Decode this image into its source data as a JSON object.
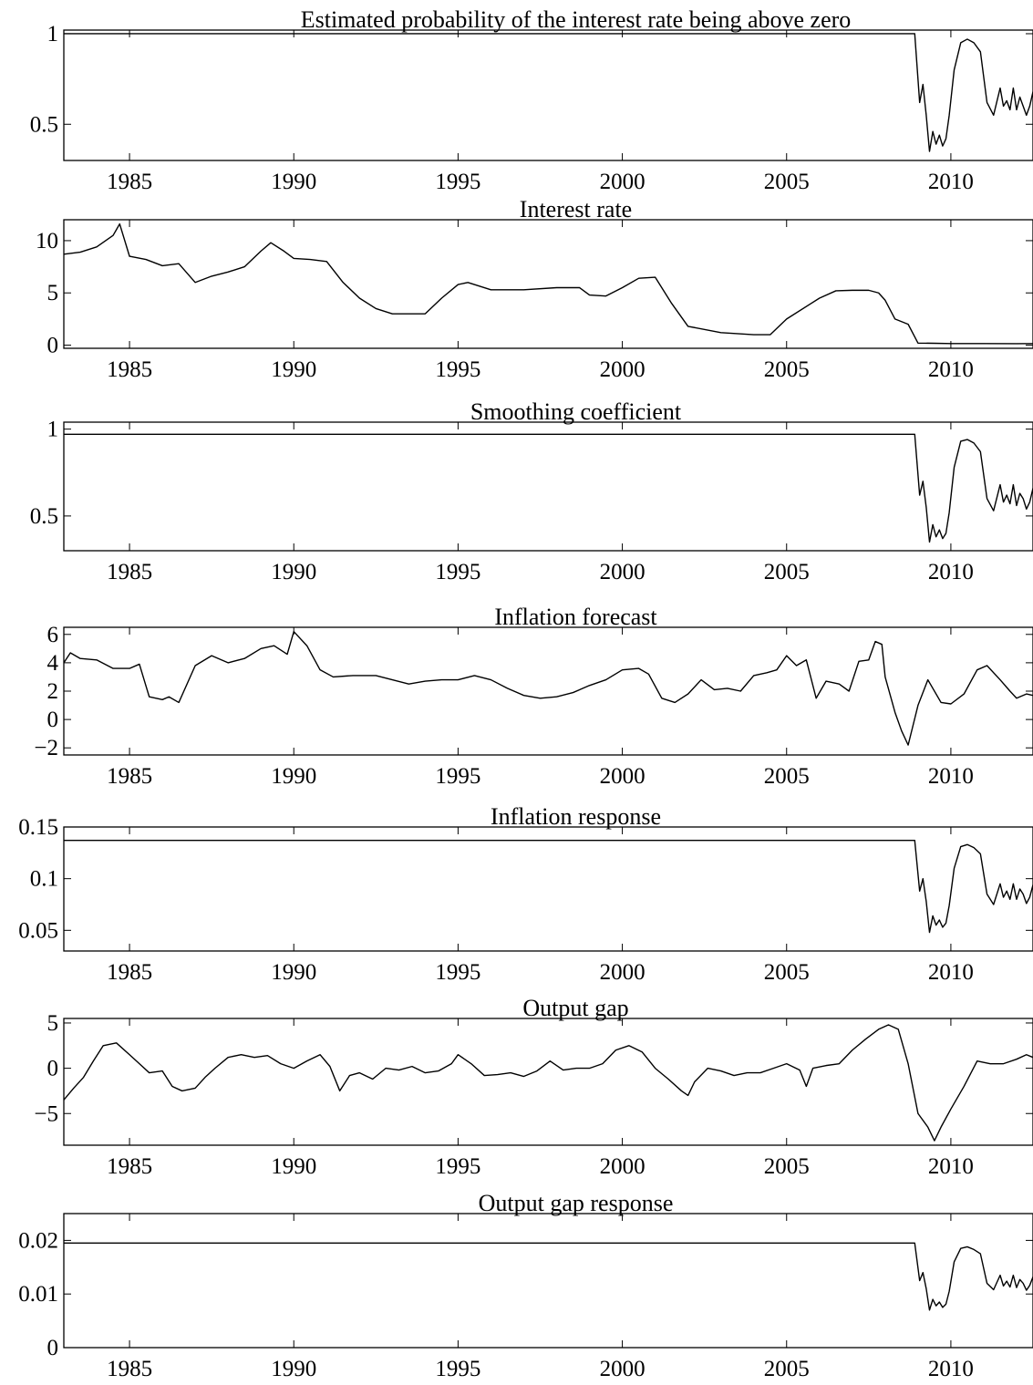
{
  "chart_data": [
    {
      "type": "line",
      "title": "Estimated probability of the interest rate being above zero",
      "xlim": [
        1983,
        2012.5
      ],
      "ylim": [
        0.3,
        1.02
      ],
      "yticks": [
        0.5,
        1
      ],
      "ytick_labels": [
        "0.5",
        "1"
      ],
      "xticks": [
        1985,
        1990,
        1995,
        2000,
        2005,
        2010
      ],
      "xtick_labels": [
        "1985",
        "1990",
        "1995",
        "2000",
        "2005",
        "2010"
      ],
      "x": [
        1983.0,
        2008.9,
        2009.05,
        2009.15,
        2009.25,
        2009.35,
        2009.45,
        2009.55,
        2009.65,
        2009.75,
        2009.85,
        2009.95,
        2010.1,
        2010.3,
        2010.5,
        2010.7,
        2010.9,
        2011.1,
        2011.3,
        2011.5,
        2011.6,
        2011.7,
        2011.8,
        2011.9,
        2012.0,
        2012.1,
        2012.2,
        2012.3,
        2012.4,
        2012.5
      ],
      "y": [
        1.0,
        1.0,
        0.62,
        0.72,
        0.55,
        0.35,
        0.46,
        0.39,
        0.44,
        0.38,
        0.42,
        0.55,
        0.8,
        0.95,
        0.97,
        0.95,
        0.9,
        0.62,
        0.55,
        0.7,
        0.6,
        0.63,
        0.58,
        0.7,
        0.58,
        0.65,
        0.6,
        0.55,
        0.6,
        0.68
      ],
      "series": [
        {
          "values": "y"
        }
      ],
      "grid": false
    },
    {
      "type": "line",
      "title": "Interest rate",
      "xlim": [
        1983,
        2012.5
      ],
      "ylim": [
        -0.3,
        12
      ],
      "yticks": [
        0,
        5,
        10
      ],
      "ytick_labels": [
        "0",
        "5",
        "10"
      ],
      "xticks": [
        1985,
        1990,
        1995,
        2000,
        2005,
        2010
      ],
      "xtick_labels": [
        "1985",
        "1990",
        "1995",
        "2000",
        "2005",
        "2010"
      ],
      "x": [
        1983.0,
        1983.5,
        1984.0,
        1984.5,
        1984.7,
        1985.0,
        1985.5,
        1986.0,
        1986.5,
        1987.0,
        1987.5,
        1988.0,
        1988.5,
        1989.0,
        1989.3,
        1989.7,
        1990.0,
        1990.5,
        1991.0,
        1991.5,
        1992.0,
        1992.5,
        1993.0,
        1993.5,
        1994.0,
        1994.5,
        1995.0,
        1995.3,
        1996.0,
        1997.0,
        1998.0,
        1998.7,
        1999.0,
        1999.5,
        2000.0,
        2000.5,
        2001.0,
        2001.5,
        2002.0,
        2003.0,
        2004.0,
        2004.5,
        2005.0,
        2006.0,
        2006.5,
        2007.0,
        2007.5,
        2007.8,
        2008.0,
        2008.3,
        2008.7,
        2009.0,
        2009.5,
        2010.0,
        2011.0,
        2012.0,
        2012.5
      ],
      "y": [
        8.7,
        8.9,
        9.4,
        10.5,
        11.6,
        8.5,
        8.2,
        7.6,
        7.8,
        6.0,
        6.6,
        7.0,
        7.5,
        9.0,
        9.8,
        9.0,
        8.3,
        8.2,
        8.0,
        6.0,
        4.5,
        3.5,
        3.0,
        3.0,
        3.0,
        4.5,
        5.8,
        6.0,
        5.3,
        5.3,
        5.5,
        5.5,
        4.8,
        4.7,
        5.5,
        6.4,
        6.5,
        4.0,
        1.8,
        1.2,
        1.0,
        1.0,
        2.5,
        4.5,
        5.2,
        5.25,
        5.25,
        5.0,
        4.3,
        2.5,
        2.0,
        0.2,
        0.18,
        0.15,
        0.15,
        0.14,
        0.15
      ],
      "series": [
        {
          "values": "y"
        }
      ],
      "grid": false
    },
    {
      "type": "line",
      "title": "Smoothing coefficient",
      "xlim": [
        1983,
        2012.5
      ],
      "ylim": [
        0.3,
        1.04
      ],
      "yticks": [
        0.5,
        1
      ],
      "ytick_labels": [
        "0.5",
        "1"
      ],
      "xticks": [
        1985,
        1990,
        1995,
        2000,
        2005,
        2010
      ],
      "xtick_labels": [
        "1985",
        "1990",
        "1995",
        "2000",
        "2005",
        "2010"
      ],
      "x": [
        1983.0,
        2008.9,
        2009.05,
        2009.15,
        2009.25,
        2009.35,
        2009.45,
        2009.55,
        2009.65,
        2009.75,
        2009.85,
        2009.95,
        2010.1,
        2010.3,
        2010.5,
        2010.7,
        2010.9,
        2011.1,
        2011.3,
        2011.5,
        2011.6,
        2011.7,
        2011.8,
        2011.9,
        2012.0,
        2012.1,
        2012.2,
        2012.3,
        2012.4,
        2012.5
      ],
      "y": [
        0.97,
        0.97,
        0.62,
        0.7,
        0.55,
        0.35,
        0.45,
        0.38,
        0.42,
        0.37,
        0.4,
        0.52,
        0.78,
        0.93,
        0.94,
        0.92,
        0.87,
        0.6,
        0.53,
        0.68,
        0.58,
        0.62,
        0.57,
        0.68,
        0.56,
        0.63,
        0.6,
        0.54,
        0.58,
        0.66
      ],
      "series": [
        {
          "values": "y"
        }
      ],
      "grid": false
    },
    {
      "type": "line",
      "title": "Inflation forecast",
      "xlim": [
        1983,
        2012.5
      ],
      "ylim": [
        -2.5,
        6.5
      ],
      "yticks": [
        -2,
        0,
        2,
        4,
        6
      ],
      "ytick_labels": [
        "−2",
        "0",
        "2",
        "4",
        "6"
      ],
      "xticks": [
        1985,
        1990,
        1995,
        2000,
        2005,
        2010
      ],
      "xtick_labels": [
        "1985",
        "1990",
        "1995",
        "2000",
        "2005",
        "2010"
      ],
      "x": [
        1983.0,
        1983.2,
        1983.5,
        1984.0,
        1984.5,
        1985.0,
        1985.3,
        1985.6,
        1986.0,
        1986.2,
        1986.5,
        1987.0,
        1987.5,
        1988.0,
        1988.5,
        1989.0,
        1989.4,
        1989.8,
        1990.0,
        1990.4,
        1990.8,
        1991.2,
        1991.8,
        1992.5,
        1993.0,
        1993.5,
        1994.0,
        1994.5,
        1995.0,
        1995.5,
        1996.0,
        1996.5,
        1997.0,
        1997.5,
        1998.0,
        1998.5,
        1999.0,
        1999.5,
        2000.0,
        2000.5,
        2000.8,
        2001.2,
        2001.6,
        2002.0,
        2002.4,
        2002.8,
        2003.2,
        2003.6,
        2004.0,
        2004.4,
        2004.7,
        2005.0,
        2005.3,
        2005.6,
        2005.9,
        2006.2,
        2006.6,
        2006.9,
        2007.2,
        2007.5,
        2007.7,
        2007.9,
        2008.0,
        2008.3,
        2008.5,
        2008.7,
        2009.0,
        2009.3,
        2009.7,
        2010.0,
        2010.4,
        2010.8,
        2011.1,
        2011.5,
        2011.8,
        2012.0,
        2012.3,
        2012.5
      ],
      "y": [
        4.0,
        4.7,
        4.3,
        4.2,
        3.6,
        3.6,
        3.9,
        1.6,
        1.4,
        1.6,
        1.2,
        3.8,
        4.5,
        4.0,
        4.3,
        5.0,
        5.2,
        4.6,
        6.2,
        5.2,
        3.5,
        3.0,
        3.1,
        3.1,
        2.8,
        2.5,
        2.7,
        2.8,
        2.8,
        3.1,
        2.8,
        2.2,
        1.7,
        1.5,
        1.6,
        1.9,
        2.4,
        2.8,
        3.5,
        3.6,
        3.2,
        1.5,
        1.2,
        1.8,
        2.8,
        2.1,
        2.2,
        2.0,
        3.1,
        3.3,
        3.5,
        4.5,
        3.8,
        4.2,
        1.5,
        2.7,
        2.5,
        2.0,
        4.1,
        4.2,
        5.5,
        5.3,
        3.0,
        0.5,
        -0.8,
        -1.8,
        1.0,
        2.8,
        1.2,
        1.1,
        1.8,
        3.5,
        3.8,
        2.8,
        2.0,
        1.5,
        1.8,
        1.7
      ],
      "series": [
        {
          "values": "y"
        }
      ],
      "grid": false
    },
    {
      "type": "line",
      "title": "Inflation response",
      "xlim": [
        1983,
        2012.5
      ],
      "ylim": [
        0.03,
        0.15
      ],
      "yticks": [
        0.05,
        0.1,
        0.15
      ],
      "ytick_labels": [
        "0.05",
        "0.1",
        "0.15"
      ],
      "xticks": [
        1985,
        1990,
        1995,
        2000,
        2005,
        2010
      ],
      "xtick_labels": [
        "1985",
        "1990",
        "1995",
        "2000",
        "2005",
        "2010"
      ],
      "x": [
        1983.0,
        2008.9,
        2009.05,
        2009.15,
        2009.25,
        2009.35,
        2009.45,
        2009.55,
        2009.65,
        2009.75,
        2009.85,
        2009.95,
        2010.1,
        2010.3,
        2010.5,
        2010.7,
        2010.9,
        2011.1,
        2011.3,
        2011.5,
        2011.6,
        2011.7,
        2011.8,
        2011.9,
        2012.0,
        2012.1,
        2012.2,
        2012.3,
        2012.4,
        2012.5
      ],
      "y": [
        0.137,
        0.137,
        0.088,
        0.1,
        0.078,
        0.048,
        0.064,
        0.055,
        0.06,
        0.053,
        0.057,
        0.074,
        0.11,
        0.131,
        0.133,
        0.13,
        0.124,
        0.085,
        0.075,
        0.095,
        0.082,
        0.088,
        0.08,
        0.095,
        0.08,
        0.09,
        0.085,
        0.076,
        0.082,
        0.094
      ],
      "series": [
        {
          "values": "y"
        }
      ],
      "grid": false
    },
    {
      "type": "line",
      "title": "Output gap",
      "xlim": [
        1983,
        2012.5
      ],
      "ylim": [
        -8.5,
        5.5
      ],
      "yticks": [
        -5,
        0,
        5
      ],
      "ytick_labels": [
        "−5",
        "0",
        "5"
      ],
      "xticks": [
        1985,
        1990,
        1995,
        2000,
        2005,
        2010
      ],
      "xtick_labels": [
        "1985",
        "1990",
        "1995",
        "2000",
        "2005",
        "2010"
      ],
      "x": [
        1983.0,
        1983.3,
        1983.6,
        1983.9,
        1984.2,
        1984.6,
        1985.0,
        1985.3,
        1985.6,
        1986.0,
        1986.3,
        1986.6,
        1987.0,
        1987.3,
        1987.6,
        1988.0,
        1988.4,
        1988.8,
        1989.2,
        1989.6,
        1990.0,
        1990.4,
        1990.8,
        1991.1,
        1991.4,
        1991.7,
        1992.0,
        1992.4,
        1992.8,
        1993.2,
        1993.6,
        1994.0,
        1994.4,
        1994.8,
        1995.0,
        1995.4,
        1995.8,
        1996.2,
        1996.6,
        1997.0,
        1997.4,
        1997.8,
        1998.2,
        1998.6,
        1999.0,
        1999.4,
        1999.8,
        2000.2,
        2000.6,
        2001.0,
        2001.4,
        2001.8,
        2002.0,
        2002.2,
        2002.6,
        2003.0,
        2003.4,
        2003.8,
        2004.2,
        2004.6,
        2005.0,
        2005.4,
        2005.6,
        2005.8,
        2006.2,
        2006.6,
        2007.0,
        2007.4,
        2007.8,
        2008.1,
        2008.4,
        2008.7,
        2009.0,
        2009.3,
        2009.5,
        2009.7,
        2010.0,
        2010.4,
        2010.8,
        2011.2,
        2011.6,
        2012.0,
        2012.3,
        2012.5
      ],
      "y": [
        -3.5,
        -2.2,
        -1.0,
        0.8,
        2.5,
        2.8,
        1.5,
        0.5,
        -0.5,
        -0.3,
        -2.0,
        -2.5,
        -2.2,
        -1.0,
        0.0,
        1.2,
        1.5,
        1.2,
        1.4,
        0.5,
        0.0,
        0.8,
        1.5,
        0.2,
        -2.5,
        -0.8,
        -0.5,
        -1.2,
        0.0,
        -0.2,
        0.2,
        -0.5,
        -0.3,
        0.5,
        1.5,
        0.5,
        -0.8,
        -0.7,
        -0.5,
        -0.9,
        -0.3,
        0.8,
        -0.2,
        0.0,
        0.0,
        0.5,
        2.0,
        2.5,
        1.8,
        0.0,
        -1.2,
        -2.5,
        -3.0,
        -1.5,
        0.0,
        -0.3,
        -0.8,
        -0.5,
        -0.5,
        0.0,
        0.5,
        -0.2,
        -2.0,
        0.0,
        0.3,
        0.5,
        2.0,
        3.2,
        4.3,
        4.8,
        4.3,
        0.5,
        -5.0,
        -6.5,
        -8.0,
        -6.5,
        -4.5,
        -2.0,
        0.8,
        0.5,
        0.5,
        1.0,
        1.5,
        1.2
      ],
      "series": [
        {
          "values": "y"
        }
      ],
      "grid": false
    },
    {
      "type": "line",
      "title": "Output gap response",
      "xlim": [
        1983,
        2012.5
      ],
      "ylim": [
        0,
        0.025
      ],
      "yticks": [
        0,
        0.01,
        0.02
      ],
      "ytick_labels": [
        "0",
        "0.01",
        "0.02"
      ],
      "xticks": [
        1985,
        1990,
        1995,
        2000,
        2005,
        2010
      ],
      "xtick_labels": [
        "1985",
        "1990",
        "1995",
        "2000",
        "2005",
        "2010"
      ],
      "x": [
        1983.0,
        2008.9,
        2009.05,
        2009.15,
        2009.25,
        2009.35,
        2009.45,
        2009.55,
        2009.65,
        2009.75,
        2009.85,
        2009.95,
        2010.1,
        2010.3,
        2010.5,
        2010.7,
        2010.9,
        2011.1,
        2011.3,
        2011.5,
        2011.6,
        2011.7,
        2011.8,
        2011.9,
        2012.0,
        2012.1,
        2012.2,
        2012.3,
        2012.4,
        2012.5
      ],
      "y": [
        0.0195,
        0.0195,
        0.0125,
        0.014,
        0.011,
        0.007,
        0.009,
        0.0078,
        0.0085,
        0.0075,
        0.0081,
        0.0105,
        0.016,
        0.0185,
        0.0188,
        0.0183,
        0.0175,
        0.012,
        0.0108,
        0.0135,
        0.0115,
        0.0124,
        0.0113,
        0.0135,
        0.0112,
        0.0127,
        0.012,
        0.0107,
        0.0116,
        0.0132
      ],
      "series": [
        {
          "values": "y"
        }
      ],
      "grid": false
    }
  ]
}
